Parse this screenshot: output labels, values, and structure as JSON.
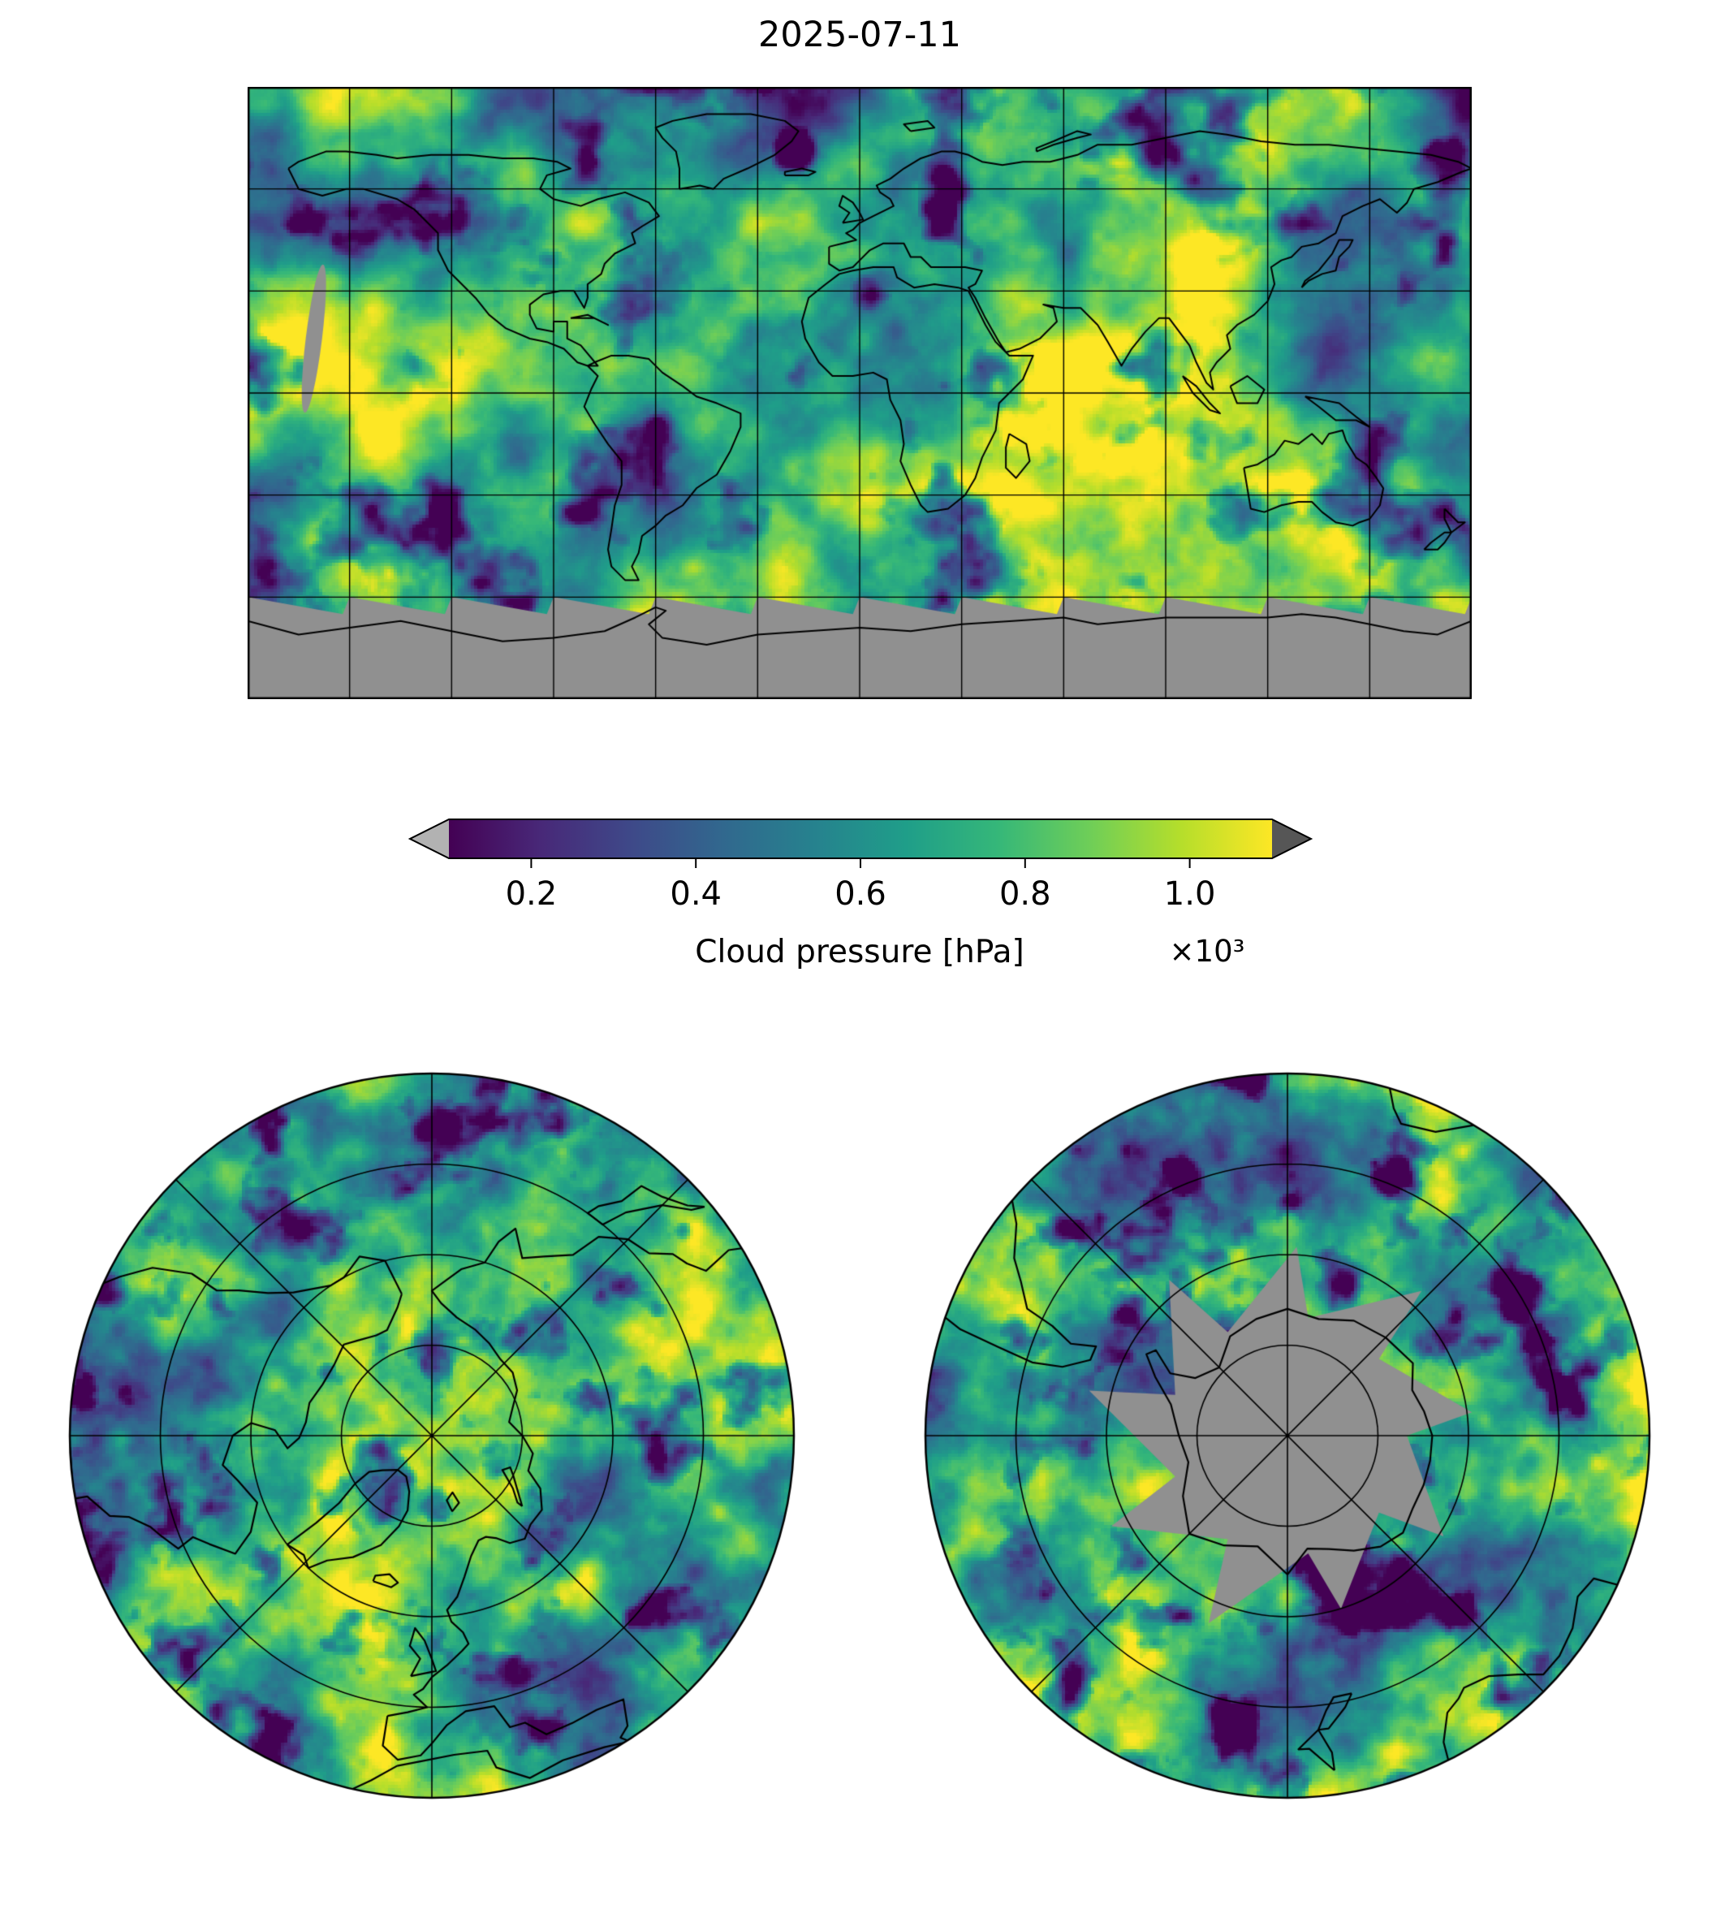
{
  "title": "2025-07-11",
  "colorbar": {
    "label": "Cloud pressure [hPa]",
    "offset_text": "×10³",
    "ticks": [
      "0.2",
      "0.4",
      "0.6",
      "0.8",
      "1.0"
    ],
    "tick_values": [
      0.2,
      0.4,
      0.6,
      0.8,
      1.0
    ],
    "range": [
      0.1,
      1.1
    ],
    "colormap": "viridis",
    "viridis_stops": [
      "#440154",
      "#482878",
      "#3e4989",
      "#31688e",
      "#26828e",
      "#1f9e89",
      "#35b779",
      "#6ece58",
      "#b5de2b",
      "#fde725"
    ],
    "under_arrow_color": "#b2b2b2",
    "over_arrow_color": "#565656"
  },
  "map": {
    "nodata_color": "#909090",
    "coastline_color": "#000000",
    "gridline_color": "#000000",
    "border_color": "#000000",
    "background_color": "#ffffff"
  }
}
